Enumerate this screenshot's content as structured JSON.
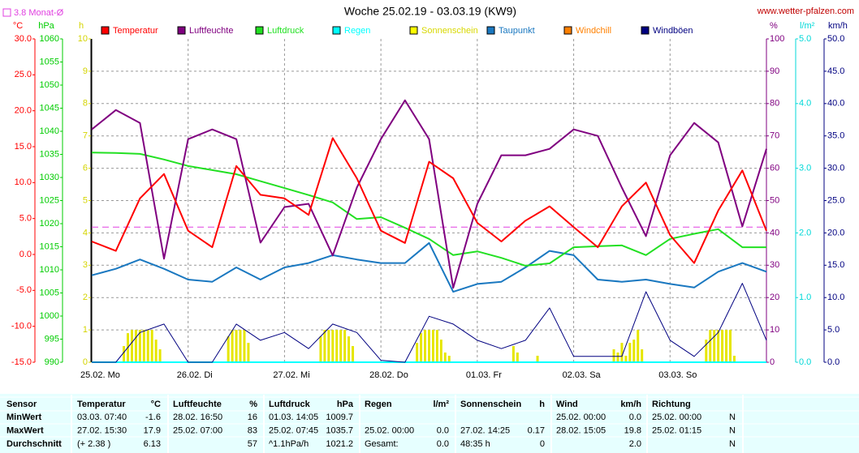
{
  "chart_data": {
    "type": "line",
    "title": "Woche 25.02.19 - 03.03.19 (KW9)",
    "source": "www.wetter-pfalzen.com",
    "reference": {
      "label": "3.8 Monat-Ø",
      "value": 3.8,
      "axis": 0,
      "color": "#e040e0"
    },
    "xlim": [
      0,
      168
    ],
    "xticks": [
      {
        "value": 0,
        "label": "25.02. Mo"
      },
      {
        "value": 24,
        "label": "26.02. Di"
      },
      {
        "value": 48,
        "label": "27.02. Mi"
      },
      {
        "value": 72,
        "label": "28.02. Do"
      },
      {
        "value": 96,
        "label": "01.03. Fr"
      },
      {
        "value": 120,
        "label": "02.03. Sa"
      },
      {
        "value": 144,
        "label": "03.03. So"
      }
    ],
    "axes": [
      {
        "unit": "°C",
        "color": "#ff0000",
        "lim": [
          -15,
          30
        ],
        "ticks": [
          {
            "value": -15,
            "label": "-15.0"
          },
          {
            "value": -10,
            "label": "-10.0"
          },
          {
            "value": -5,
            "label": "-5.0"
          },
          {
            "value": 0,
            "label": "0.0"
          },
          {
            "value": 5,
            "label": "5.0"
          },
          {
            "value": 10,
            "label": "10.0"
          },
          {
            "value": 15,
            "label": "15.0"
          },
          {
            "value": 20,
            "label": "20.0"
          },
          {
            "value": 25,
            "label": "25.0"
          },
          {
            "value": 30,
            "label": "30.0"
          }
        ]
      },
      {
        "unit": "hPa",
        "color": "#00cc00",
        "lim": [
          990,
          1060
        ],
        "ticks": [
          990,
          995,
          1000,
          1005,
          1010,
          1015,
          1020,
          1025,
          1030,
          1035,
          1040,
          1045,
          1050,
          1055,
          1060
        ]
      },
      {
        "unit": "h",
        "color": "#d4d400",
        "lim": [
          0,
          10
        ],
        "ticks": [
          0,
          1,
          2,
          3,
          4,
          5,
          6,
          7,
          8,
          9,
          10
        ],
        "grid": true
      },
      {
        "unit": "%",
        "color": "#800080",
        "lim": [
          0,
          100
        ],
        "ticks": [
          0,
          10,
          20,
          30,
          40,
          50,
          60,
          70,
          80,
          90,
          100
        ]
      },
      {
        "unit": "l/m²",
        "color": "#00d8d8",
        "lim": [
          0,
          5
        ],
        "ticks": [
          {
            "value": 0,
            "label": "0.0"
          },
          {
            "value": 1,
            "label": "1.0"
          },
          {
            "value": 2,
            "label": "2.0"
          },
          {
            "value": 3,
            "label": "3.0"
          },
          {
            "value": 4,
            "label": "4.0"
          },
          {
            "value": 5,
            "label": "5.0"
          }
        ]
      },
      {
        "unit": "km/h",
        "color": "#000080",
        "lim": [
          0,
          50
        ],
        "ticks": [
          {
            "value": 0,
            "label": "0.0"
          },
          {
            "value": 5,
            "label": "5.0"
          },
          {
            "value": 10,
            "label": "10.0"
          },
          {
            "value": 15,
            "label": "15.0"
          },
          {
            "value": 20,
            "label": "20.0"
          },
          {
            "value": 25,
            "label": "25.0"
          },
          {
            "value": 30,
            "label": "30.0"
          },
          {
            "value": 35,
            "label": "35.0"
          },
          {
            "value": 40,
            "label": "40.0"
          },
          {
            "value": 45,
            "label": "45.0"
          },
          {
            "value": 50,
            "label": "50.0"
          }
        ]
      }
    ],
    "x": [
      0,
      6,
      12,
      18,
      24,
      30,
      36,
      42,
      48,
      54,
      60,
      66,
      72,
      78,
      84,
      90,
      96,
      102,
      108,
      114,
      120,
      126,
      132,
      138,
      144,
      150,
      156,
      162,
      168
    ],
    "series": [
      {
        "name": "Temperatur",
        "color": "#ff0000",
        "axis": 0,
        "values": [
          1.8,
          0.5,
          7.8,
          11.2,
          3.3,
          1.0,
          12.3,
          8.3,
          7.8,
          5.5,
          16.2,
          10.6,
          3.3,
          1.6,
          12.9,
          10.6,
          4.4,
          1.8,
          4.7,
          6.7,
          3.8,
          1.0,
          6.7,
          10.0,
          2.7,
          -1.2,
          6.1,
          11.7,
          3.3
        ]
      },
      {
        "name": "Luftfeuchte",
        "color": "#800080",
        "axis": 3,
        "values": [
          72,
          78,
          74,
          32,
          69,
          72,
          69,
          37,
          48,
          49,
          33,
          54,
          69,
          81,
          69,
          23,
          49,
          64,
          64,
          66,
          72,
          70,
          54,
          39,
          64,
          74,
          68,
          42,
          66
        ]
      },
      {
        "name": "Luftdruck",
        "color": "#22e022",
        "axis": 1,
        "values": [
          1035.4,
          1035.3,
          1035.1,
          1033.9,
          1032.5,
          1031.6,
          1030.7,
          1029.2,
          1027.7,
          1026.2,
          1024.6,
          1021.0,
          1021.4,
          1019.1,
          1016.7,
          1013.2,
          1014.0,
          1012.6,
          1010.9,
          1011.4,
          1014.9,
          1015.1,
          1015.3,
          1013.2,
          1016.7,
          1017.8,
          1018.8,
          1014.9,
          1014.9
        ]
      },
      {
        "name": "Regen",
        "color": "#00ffff",
        "axis": 4,
        "values": [
          0,
          0,
          0,
          0,
          0,
          0,
          0,
          0,
          0,
          0,
          0,
          0,
          0,
          0,
          0,
          0,
          0,
          0,
          0,
          0,
          0,
          0,
          0,
          0,
          0,
          0,
          0,
          0,
          0
        ]
      },
      {
        "name": "Sonnenschein",
        "color": "#ffff00",
        "axis": 2,
        "kind": "bar",
        "x": [
          8,
          9,
          10,
          11,
          12,
          13,
          14,
          15,
          16,
          17,
          34,
          35,
          36,
          37,
          38,
          39,
          57,
          58,
          59,
          60,
          61,
          62,
          63,
          64,
          65,
          81,
          82,
          83,
          84,
          85,
          86,
          87,
          88,
          89,
          105,
          106,
          111,
          130,
          131,
          132,
          133,
          134,
          135,
          136,
          137,
          153,
          154,
          155,
          156,
          157,
          158,
          159,
          160
        ],
        "values": [
          0.5,
          0.9,
          1,
          1,
          1,
          1,
          1,
          1,
          0.7,
          0.4,
          0.8,
          1,
          1,
          1,
          1,
          0.6,
          0.8,
          1,
          1,
          1,
          1,
          1,
          1,
          0.8,
          0.5,
          0.6,
          0.9,
          1,
          1,
          1,
          1,
          0.7,
          0.3,
          0.2,
          0.5,
          0.3,
          0.2,
          0.4,
          0.3,
          0.6,
          0.2,
          0.6,
          0.7,
          1,
          0.4,
          0.7,
          1,
          1,
          1,
          1,
          1,
          1,
          0.2
        ]
      },
      {
        "name": "Taupunkt",
        "color": "#1a78c0",
        "axis": 0,
        "values": [
          -2.9,
          -2.0,
          -0.7,
          -2.0,
          -3.5,
          -3.8,
          -1.8,
          -3.5,
          -1.8,
          -1.2,
          -0.1,
          -0.7,
          -1.2,
          -1.2,
          1.6,
          -5.2,
          -4.1,
          -3.8,
          -1.8,
          0.5,
          -0.1,
          -3.5,
          -3.8,
          -3.5,
          -4.1,
          -4.6,
          -2.4,
          -1.2,
          -2.4
        ]
      },
      {
        "name": "Windchill",
        "color": "#ff8000",
        "axis": 0,
        "values": [
          null,
          null,
          null,
          null,
          null,
          null,
          null,
          null,
          null,
          null,
          null,
          null,
          null,
          null,
          null,
          null,
          null,
          null,
          null,
          null,
          null,
          null,
          null,
          null,
          null,
          null,
          null,
          null,
          null
        ]
      },
      {
        "name": "Windböen",
        "color": "#000080",
        "axis": 5,
        "values": [
          0,
          0,
          4.6,
          5.9,
          0,
          0,
          5.9,
          3.4,
          4.6,
          2.1,
          5.9,
          4.6,
          0.3,
          0,
          7.1,
          5.9,
          3.4,
          2.1,
          3.4,
          8.4,
          0.9,
          0.9,
          0.9,
          10.9,
          3.4,
          0.9,
          4.6,
          12.2,
          3.4
        ]
      }
    ]
  },
  "table": {
    "sensor": "Sensor",
    "header": [
      [
        "Temperatur",
        "°C"
      ],
      [
        "Luftfeuchte",
        "%"
      ],
      [
        "Luftdruck",
        "hPa"
      ],
      [
        "Regen",
        "l/m²"
      ],
      [
        "Sonnenschein",
        "h"
      ],
      [
        "Wind",
        "km/h"
      ],
      [
        "Richtung"
      ]
    ],
    "rows": [
      {
        "label": "MinWert",
        "cells": [
          [
            "03.03.  07:40",
            "-1.6"
          ],
          [
            "28.02.  16:50",
            "16"
          ],
          [
            "01.03.  14:05",
            "1009.7"
          ],
          null,
          null,
          [
            "25.02.  00:00",
            "0.0"
          ],
          [
            "25.02.  00:00",
            "N"
          ]
        ]
      },
      {
        "label": "MaxWert",
        "cells": [
          [
            "27.02.  15:30",
            "17.9"
          ],
          [
            "25.02.  07:00",
            "83"
          ],
          [
            "25.02.  07:45",
            "1035.7"
          ],
          [
            "25.02.  00:00",
            "0.0"
          ],
          [
            "27.02.  14:25",
            "0.17"
          ],
          [
            "28.02.  15:05",
            "19.8"
          ],
          [
            "25.02.  01:15",
            "N"
          ]
        ]
      },
      {
        "label": "Durchschnitt",
        "cells": [
          [
            "(+ 2.38 )",
            "6.13"
          ],
          [
            null,
            "57"
          ],
          [
            "^1.1hPa/h",
            "1021.2"
          ],
          [
            "Gesamt:",
            "0.0"
          ],
          [
            "48:35 h",
            "0"
          ],
          [
            null,
            "2.0"
          ],
          [
            null,
            "N"
          ]
        ]
      }
    ]
  }
}
